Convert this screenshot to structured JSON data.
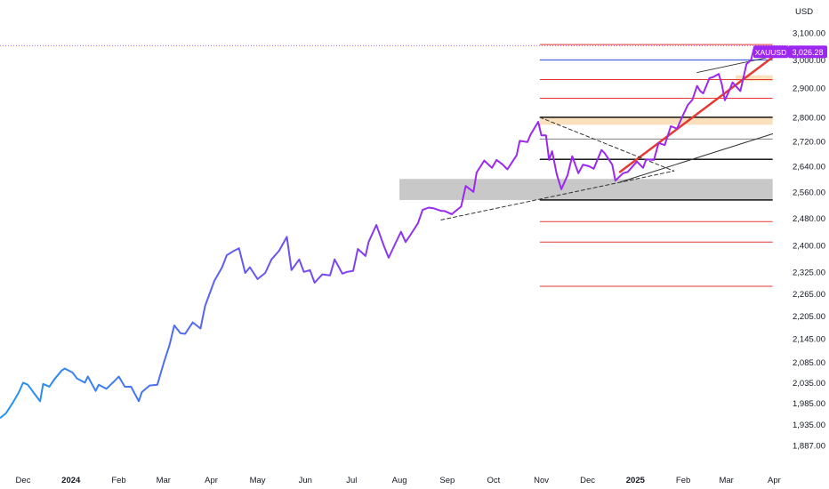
{
  "chart_data": {
    "type": "line",
    "currency_label": "USD",
    "symbol": "XAUUSD",
    "last_price_label": "3,026.28",
    "last_price": 3026.28,
    "y_scale": "log",
    "ylim": [
      1865,
      3190
    ],
    "xlim": [
      "2023-11-16",
      "2025-04-10"
    ],
    "y_ticks": [
      "3,100.00",
      "3,000.00",
      "2,900.00",
      "2,800.00",
      "2,720.00",
      "2,640.00",
      "2,560.00",
      "2,480.00",
      "2,400.00",
      "2,325.00",
      "2,265.00",
      "2,205.00",
      "2,145.00",
      "2,085.00",
      "2,035.00",
      "1,985.00",
      "1,935.00",
      "1,887.00"
    ],
    "x_ticks": [
      {
        "label": "Dec",
        "date": "2023-12-01",
        "bold": false
      },
      {
        "label": "2024",
        "date": "2024-01-01",
        "bold": true
      },
      {
        "label": "Feb",
        "date": "2024-02-01",
        "bold": false
      },
      {
        "label": "Mar",
        "date": "2024-03-01",
        "bold": false
      },
      {
        "label": "Apr",
        "date": "2024-04-01",
        "bold": false
      },
      {
        "label": "May",
        "date": "2024-05-01",
        "bold": false
      },
      {
        "label": "Jun",
        "date": "2024-06-01",
        "bold": false
      },
      {
        "label": "Jul",
        "date": "2024-07-01",
        "bold": false
      },
      {
        "label": "Aug",
        "date": "2024-08-01",
        "bold": false
      },
      {
        "label": "Sep",
        "date": "2024-09-01",
        "bold": false
      },
      {
        "label": "Oct",
        "date": "2024-10-01",
        "bold": false
      },
      {
        "label": "Nov",
        "date": "2024-11-01",
        "bold": false
      },
      {
        "label": "Dec",
        "date": "2024-12-01",
        "bold": false
      },
      {
        "label": "2025",
        "date": "2025-01-01",
        "bold": true
      },
      {
        "label": "Feb",
        "date": "2025-02-01",
        "bold": false
      },
      {
        "label": "Mar",
        "date": "2025-03-01",
        "bold": false
      },
      {
        "label": "Apr",
        "date": "2025-04-01",
        "bold": false
      }
    ],
    "series": [
      {
        "color_start": "#2196f3",
        "color_end": "#9c27f0",
        "points": [
          [
            "2023-11-16",
            1950
          ],
          [
            "2023-11-20",
            1962
          ],
          [
            "2023-11-24",
            1985
          ],
          [
            "2023-11-28",
            2010
          ],
          [
            "2023-12-01",
            2035
          ],
          [
            "2023-12-04",
            2030
          ],
          [
            "2023-12-06",
            2020
          ],
          [
            "2023-12-08",
            2010
          ],
          [
            "2023-12-12",
            1990
          ],
          [
            "2023-12-14",
            2032
          ],
          [
            "2023-12-18",
            2025
          ],
          [
            "2023-12-21",
            2042
          ],
          [
            "2023-12-26",
            2065
          ],
          [
            "2023-12-28",
            2070
          ],
          [
            "2024-01-02",
            2060
          ],
          [
            "2024-01-05",
            2045
          ],
          [
            "2024-01-10",
            2035
          ],
          [
            "2024-01-12",
            2050
          ],
          [
            "2024-01-17",
            2015
          ],
          [
            "2024-01-19",
            2030
          ],
          [
            "2024-01-24",
            2020
          ],
          [
            "2024-01-29",
            2038
          ],
          [
            "2024-02-01",
            2050
          ],
          [
            "2024-02-05",
            2025
          ],
          [
            "2024-02-09",
            2025
          ],
          [
            "2024-02-14",
            1990
          ],
          [
            "2024-02-16",
            2012
          ],
          [
            "2024-02-21",
            2028
          ],
          [
            "2024-02-26",
            2030
          ],
          [
            "2024-03-01",
            2082
          ],
          [
            "2024-03-05",
            2130
          ],
          [
            "2024-03-08",
            2180
          ],
          [
            "2024-03-12",
            2160
          ],
          [
            "2024-03-15",
            2158
          ],
          [
            "2024-03-20",
            2188
          ],
          [
            "2024-03-25",
            2172
          ],
          [
            "2024-03-28",
            2232
          ],
          [
            "2024-04-03",
            2300
          ],
          [
            "2024-04-08",
            2338
          ],
          [
            "2024-04-11",
            2372
          ],
          [
            "2024-04-15",
            2383
          ],
          [
            "2024-04-19",
            2392
          ],
          [
            "2024-04-23",
            2322
          ],
          [
            "2024-04-26",
            2338
          ],
          [
            "2024-05-01",
            2305
          ],
          [
            "2024-05-06",
            2322
          ],
          [
            "2024-05-10",
            2360
          ],
          [
            "2024-05-15",
            2385
          ],
          [
            "2024-05-20",
            2425
          ],
          [
            "2024-05-23",
            2330
          ],
          [
            "2024-05-28",
            2360
          ],
          [
            "2024-05-31",
            2325
          ],
          [
            "2024-06-04",
            2330
          ],
          [
            "2024-06-07",
            2295
          ],
          [
            "2024-06-12",
            2318
          ],
          [
            "2024-06-17",
            2315
          ],
          [
            "2024-06-20",
            2360
          ],
          [
            "2024-06-25",
            2320
          ],
          [
            "2024-06-28",
            2325
          ],
          [
            "2024-07-02",
            2328
          ],
          [
            "2024-07-05",
            2390
          ],
          [
            "2024-07-10",
            2370
          ],
          [
            "2024-07-12",
            2410
          ],
          [
            "2024-07-17",
            2460
          ],
          [
            "2024-07-22",
            2398
          ],
          [
            "2024-07-25",
            2365
          ],
          [
            "2024-07-30",
            2412
          ],
          [
            "2024-08-02",
            2440
          ],
          [
            "2024-08-05",
            2410
          ],
          [
            "2024-08-08",
            2430
          ],
          [
            "2024-08-13",
            2465
          ],
          [
            "2024-08-16",
            2505
          ],
          [
            "2024-08-20",
            2512
          ],
          [
            "2024-08-23",
            2510
          ],
          [
            "2024-08-28",
            2502
          ],
          [
            "2024-08-30",
            2502
          ],
          [
            "2024-09-04",
            2492
          ],
          [
            "2024-09-06",
            2500
          ],
          [
            "2024-09-10",
            2515
          ],
          [
            "2024-09-13",
            2578
          ],
          [
            "2024-09-18",
            2560
          ],
          [
            "2024-09-20",
            2620
          ],
          [
            "2024-09-25",
            2658
          ],
          [
            "2024-09-30",
            2635
          ],
          [
            "2024-10-03",
            2660
          ],
          [
            "2024-10-07",
            2645
          ],
          [
            "2024-10-10",
            2630
          ],
          [
            "2024-10-16",
            2675
          ],
          [
            "2024-10-18",
            2722
          ],
          [
            "2024-10-23",
            2718
          ],
          [
            "2024-10-25",
            2742
          ],
          [
            "2024-10-30",
            2785
          ],
          [
            "2024-11-01",
            2740
          ],
          [
            "2024-11-04",
            2740
          ],
          [
            "2024-11-06",
            2660
          ],
          [
            "2024-11-08",
            2688
          ],
          [
            "2024-11-11",
            2615
          ],
          [
            "2024-11-14",
            2568
          ],
          [
            "2024-11-18",
            2612
          ],
          [
            "2024-11-21",
            2672
          ],
          [
            "2024-11-25",
            2618
          ],
          [
            "2024-11-28",
            2645
          ],
          [
            "2024-12-02",
            2640
          ],
          [
            "2024-12-05",
            2632
          ],
          [
            "2024-12-10",
            2692
          ],
          [
            "2024-12-12",
            2682
          ],
          [
            "2024-12-17",
            2645
          ],
          [
            "2024-12-19",
            2595
          ],
          [
            "2024-12-24",
            2618
          ],
          [
            "2024-12-27",
            2622
          ],
          [
            "2025-01-02",
            2655
          ],
          [
            "2025-01-06",
            2635
          ],
          [
            "2025-01-08",
            2662
          ],
          [
            "2025-01-13",
            2660
          ],
          [
            "2025-01-16",
            2715
          ],
          [
            "2025-01-20",
            2708
          ],
          [
            "2025-01-24",
            2770
          ],
          [
            "2025-01-28",
            2762
          ],
          [
            "2025-01-31",
            2798
          ],
          [
            "2025-02-04",
            2842
          ],
          [
            "2025-02-07",
            2860
          ],
          [
            "2025-02-10",
            2908
          ],
          [
            "2025-02-12",
            2890
          ],
          [
            "2025-02-14",
            2882
          ],
          [
            "2025-02-18",
            2935
          ],
          [
            "2025-02-20",
            2938
          ],
          [
            "2025-02-24",
            2950
          ],
          [
            "2025-02-26",
            2915
          ],
          [
            "2025-02-28",
            2858
          ],
          [
            "2025-03-03",
            2893
          ],
          [
            "2025-03-05",
            2920
          ],
          [
            "2025-03-07",
            2908
          ],
          [
            "2025-03-10",
            2890
          ],
          [
            "2025-03-12",
            2935
          ],
          [
            "2025-03-14",
            2985
          ],
          [
            "2025-03-17",
            3000
          ],
          [
            "2025-03-19",
            3045
          ],
          [
            "2025-03-20",
            3042
          ],
          [
            "2025-03-21",
            3026.28
          ]
        ]
      }
    ],
    "horizontal_levels": [
      {
        "price": 3056,
        "color": "#e53935",
        "from": "2024-10-31"
      },
      {
        "price": 3000,
        "color": "#1e44d8",
        "from": "2024-10-31"
      },
      {
        "price": 2930,
        "color": "#e53935",
        "from": "2024-10-31"
      },
      {
        "price": 2865,
        "color": "#e53935",
        "from": "2024-10-31"
      },
      {
        "price": 2800,
        "color": "#000000",
        "from": "2024-10-31"
      },
      {
        "price": 2728,
        "color": "#808080",
        "from": "2024-10-31"
      },
      {
        "price": 2662,
        "color": "#000000",
        "from": "2024-10-31"
      },
      {
        "price": 2535,
        "color": "#000000",
        "from": "2024-10-31"
      },
      {
        "price": 2470,
        "color": "#e53935",
        "from": "2024-10-31"
      },
      {
        "price": 2410,
        "color": "#e53935",
        "from": "2024-10-31"
      },
      {
        "price": 2285,
        "color": "#e53935",
        "from": "2024-10-31"
      }
    ],
    "zones": [
      {
        "from": "2024-08-01",
        "to": "2025-03-31",
        "low": 2535,
        "high": 2600,
        "color": "#c8c8c8"
      },
      {
        "from": "2024-10-31",
        "to": "2025-03-31",
        "low": 2775,
        "high": 2800,
        "color": "#fbe0bd"
      },
      {
        "from": "2025-03-07",
        "to": "2025-03-31",
        "low": 2925,
        "high": 2945,
        "color": "#fbe0bd"
      }
    ],
    "trendlines": [
      {
        "from": [
          "2024-12-22",
          2622
        ],
        "to": [
          "2025-03-31",
          3010
        ],
        "color": "#e53935",
        "width": 2.5,
        "dash": false
      },
      {
        "from": [
          "2024-12-22",
          2590
        ],
        "to": [
          "2025-03-31",
          2745
        ],
        "color": "#333333",
        "width": 1,
        "dash": false
      },
      {
        "from": [
          "2025-02-10",
          2955
        ],
        "to": [
          "2025-03-27",
          3008
        ],
        "color": "#333333",
        "width": 1,
        "dash": false
      },
      {
        "from": [
          "2024-08-28",
          2475
        ],
        "to": [
          "2025-01-26",
          2625
        ],
        "color": "#333333",
        "width": 1,
        "dash": true
      },
      {
        "from": [
          "2024-10-31",
          2800
        ],
        "to": [
          "2025-01-26",
          2625
        ],
        "color": "#333333",
        "width": 1,
        "dash": true
      }
    ],
    "last_price_guide": {
      "color": "#9c27f0",
      "dotted": true
    }
  }
}
